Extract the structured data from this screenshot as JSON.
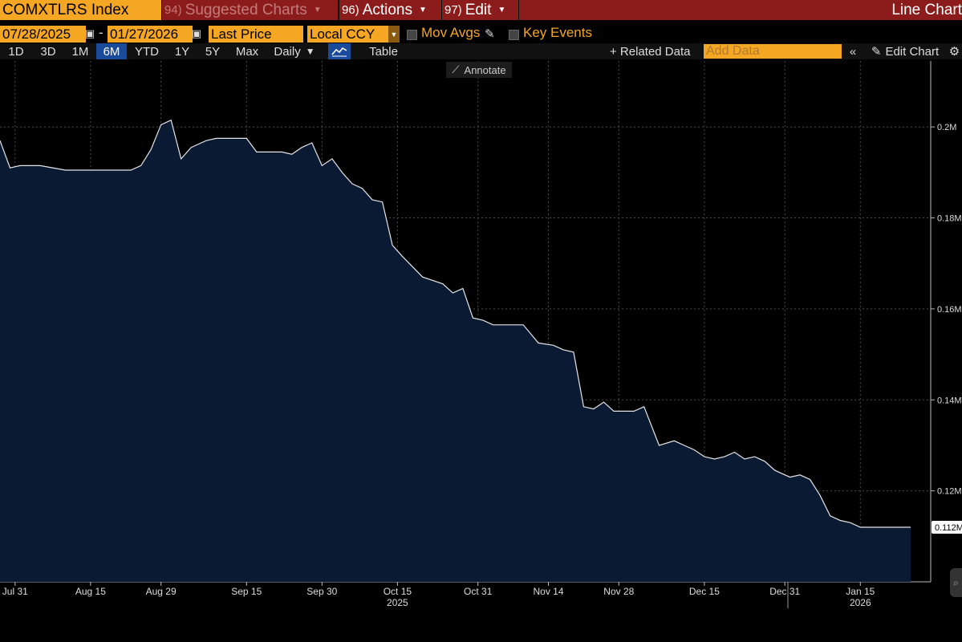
{
  "header": {
    "security": "COMXTLRS Index",
    "suggested_num": "94)",
    "suggested_label": "Suggested Charts",
    "actions_num": "96)",
    "actions_label": "Actions",
    "edit_num": "97)",
    "edit_label": "Edit",
    "chart_type": "Line Chart"
  },
  "settings": {
    "start_date": "07/28/2025",
    "separator": "-",
    "end_date": "01/27/2026",
    "field": "Last Price",
    "currency": "Local CCY",
    "mov_avgs": "Mov Avgs",
    "key_events": "Key Events"
  },
  "toolbar": {
    "periods": [
      "1D",
      "3D",
      "1M",
      "6M",
      "YTD",
      "1Y",
      "5Y",
      "Max"
    ],
    "active_period": "6M",
    "frequency": "Daily",
    "table": "Table",
    "related_data": "+ Related Data",
    "add_data_placeholder": "Add Data",
    "edit_chart": "Edit Chart",
    "annotate": "Annotate"
  },
  "colors": {
    "accent": "#f5a623",
    "header_red": "#8c1c1c",
    "fill": "#0b1a33",
    "line": "#e6e6e6"
  },
  "chart_data": {
    "type": "area",
    "last_value_label": "0.112M",
    "ylim": [
      0.1,
      0.2145
    ],
    "y_ticks": [
      "0.12M",
      "0.14M",
      "0.16M",
      "0.18M",
      "0.2M"
    ],
    "y_tick_values": [
      0.12,
      0.14,
      0.16,
      0.18,
      0.2
    ],
    "x_ticks": [
      "Jul 31",
      "Aug 15",
      "Aug 29",
      "Sep 15",
      "Sep 30",
      "Oct 15",
      "Oct 31",
      "Nov 14",
      "Nov 28",
      "Dec 15",
      "Dec 31",
      "Jan 15"
    ],
    "x_tick_dates": [
      "2025-07-31",
      "2025-08-15",
      "2025-08-29",
      "2025-09-15",
      "2025-09-30",
      "2025-10-15",
      "2025-10-31",
      "2025-11-14",
      "2025-11-28",
      "2025-12-15",
      "2025-12-31",
      "2026-01-15"
    ],
    "year_labels": [
      {
        "label": "2025",
        "date": "2025-10-15"
      },
      {
        "label": "2026",
        "date": "2026-01-15"
      }
    ],
    "grid": true,
    "series": [
      {
        "x": [
          "2025-07-28",
          "2025-07-30",
          "2025-08-01",
          "2025-08-05",
          "2025-08-10",
          "2025-08-15",
          "2025-08-20",
          "2025-08-23",
          "2025-08-25",
          "2025-08-27",
          "2025-08-29",
          "2025-08-31",
          "2025-09-02",
          "2025-09-04",
          "2025-09-07",
          "2025-09-09",
          "2025-09-12",
          "2025-09-15",
          "2025-09-17",
          "2025-09-19",
          "2025-09-22",
          "2025-09-24",
          "2025-09-26",
          "2025-09-28",
          "2025-09-30",
          "2025-10-02",
          "2025-10-04",
          "2025-10-06",
          "2025-10-08",
          "2025-10-10",
          "2025-10-12",
          "2025-10-14",
          "2025-10-16",
          "2025-10-20",
          "2025-10-24",
          "2025-10-26",
          "2025-10-28",
          "2025-10-30",
          "2025-11-01",
          "2025-11-03",
          "2025-11-06",
          "2025-11-09",
          "2025-11-12",
          "2025-11-15",
          "2025-11-17",
          "2025-11-19",
          "2025-11-21",
          "2025-11-23",
          "2025-11-25",
          "2025-11-27",
          "2025-11-29",
          "2025-12-01",
          "2025-12-03",
          "2025-12-06",
          "2025-12-09",
          "2025-12-11",
          "2025-12-13",
          "2025-12-15",
          "2025-12-17",
          "2025-12-19",
          "2025-12-21",
          "2025-12-23",
          "2025-12-25",
          "2025-12-27",
          "2025-12-29",
          "2026-01-01",
          "2026-01-03",
          "2026-01-05",
          "2026-01-07",
          "2026-01-09",
          "2026-01-11",
          "2026-01-13",
          "2026-01-15",
          "2026-01-17",
          "2026-01-19",
          "2026-01-21",
          "2026-01-23",
          "2026-01-25"
        ],
        "values": [
          0.197,
          0.191,
          0.1915,
          0.1915,
          0.1905,
          0.1905,
          0.1905,
          0.1905,
          0.1915,
          0.195,
          0.2005,
          0.2015,
          0.193,
          0.1955,
          0.197,
          0.1975,
          0.1975,
          0.1975,
          0.1945,
          0.1945,
          0.1945,
          0.194,
          0.1955,
          0.1965,
          0.1915,
          0.193,
          0.19,
          0.1875,
          0.1865,
          0.184,
          0.1835,
          0.174,
          0.1715,
          0.167,
          0.1655,
          0.1635,
          0.1645,
          0.158,
          0.1575,
          0.1565,
          0.1565,
          0.1565,
          0.1525,
          0.152,
          0.151,
          0.1505,
          0.1385,
          0.138,
          0.1395,
          0.1375,
          0.1375,
          0.1375,
          0.1385,
          0.13,
          0.131,
          0.13,
          0.129,
          0.1275,
          0.127,
          0.1275,
          0.1285,
          0.127,
          0.1275,
          0.1265,
          0.1245,
          0.123,
          0.1235,
          0.1225,
          0.119,
          0.1145,
          0.1135,
          0.113,
          0.112,
          0.112,
          0.112,
          0.112,
          0.112,
          0.112
        ]
      }
    ]
  }
}
